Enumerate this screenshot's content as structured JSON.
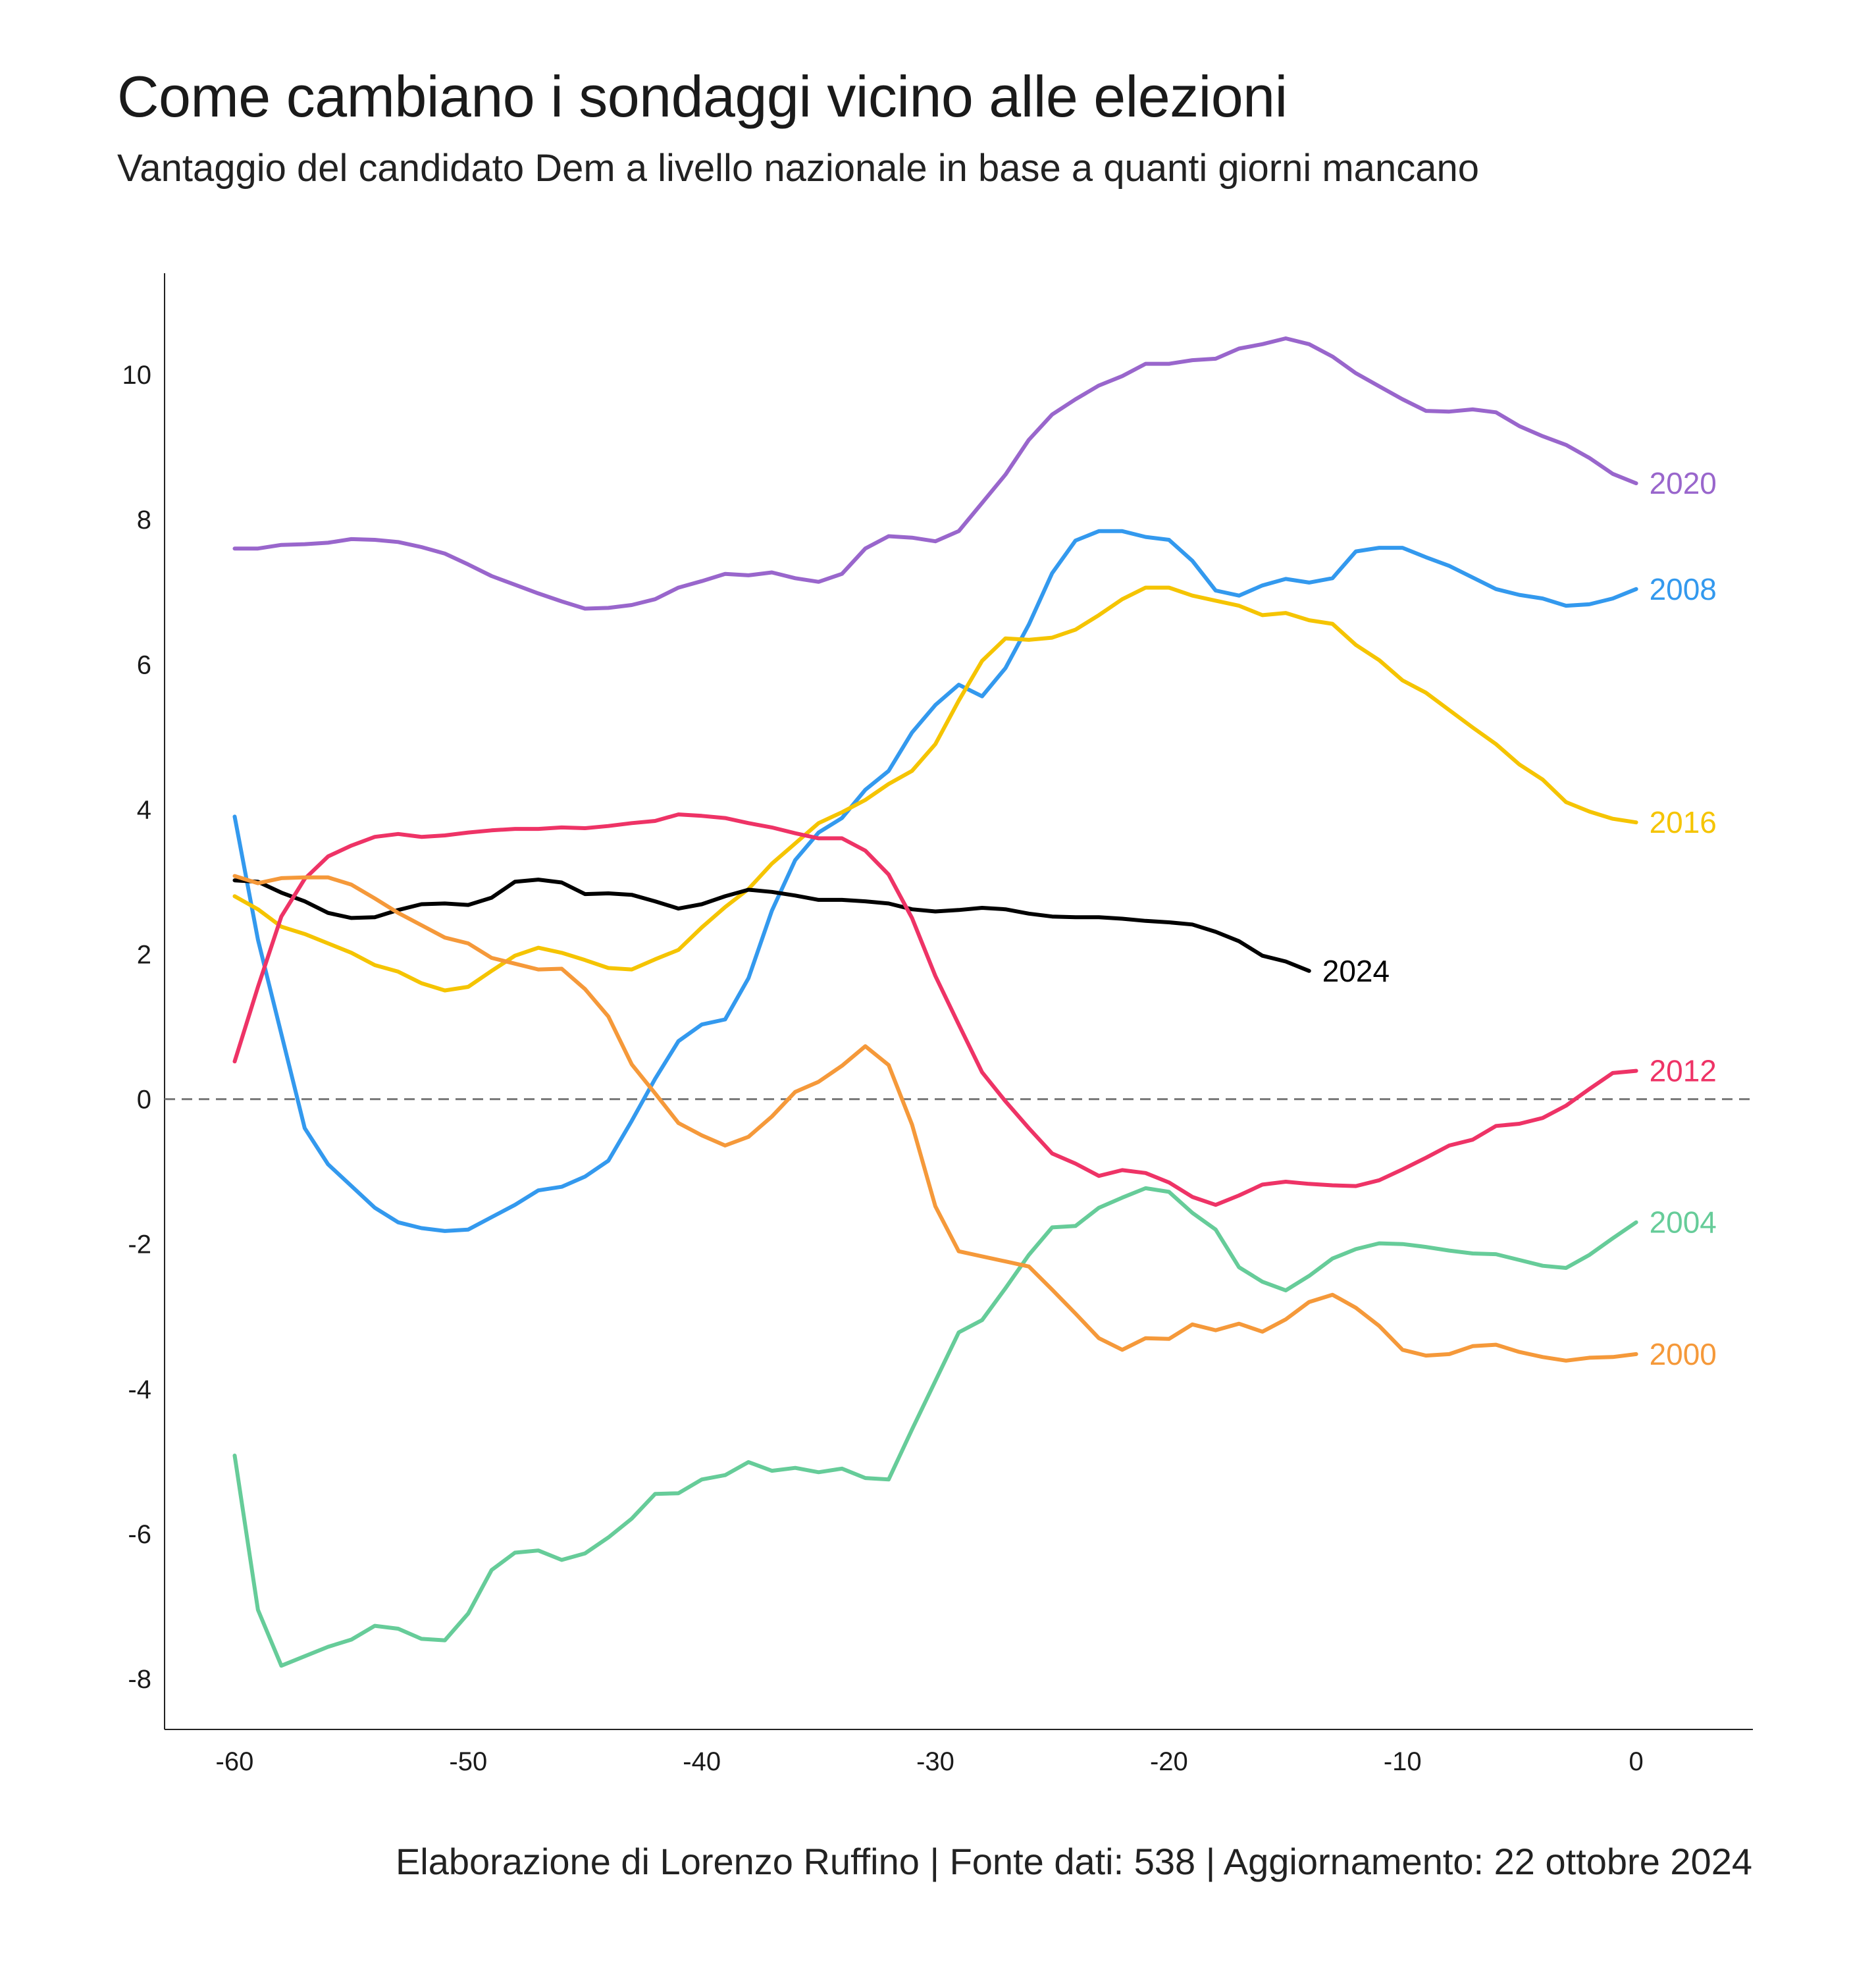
{
  "chart_data": {
    "type": "line",
    "title": "Come cambiano i sondaggi vicino alle elezioni",
    "subtitle": "Vantaggio del candidato Dem a livello nazionale in base a quanti giorni mancano",
    "caption": "Elaborazione di Lorenzo Ruffino | Fonte dati: 538 | Aggiornamento: 22 ottobre 2024",
    "xlabel": "",
    "ylabel": "",
    "xlim": [
      -63,
      5
    ],
    "ylim": [
      -8.7,
      11.4
    ],
    "x_ticks": [
      -60,
      -50,
      -40,
      -30,
      -20,
      -10,
      0
    ],
    "x_tick_labels": [
      "-60",
      "-50",
      "-40",
      "-30",
      "-20",
      "-10",
      "0"
    ],
    "y_ticks": [
      -8,
      -6,
      -4,
      -2,
      0,
      2,
      4,
      6,
      8,
      10
    ],
    "y_tick_labels": [
      "-8",
      "-6",
      "-4",
      "-2",
      "0",
      "2",
      "4",
      "6",
      "8",
      "10"
    ],
    "zero_line": "dashed",
    "grid": false,
    "legend": "inline labels at end of lines",
    "series": [
      {
        "name": "2020",
        "color": "#9966CC",
        "x": [
          -60,
          -59,
          -58,
          -57,
          -56,
          -55,
          -54,
          -53,
          -52,
          -51,
          -50,
          -49,
          -48,
          -47,
          -46,
          -45,
          -44,
          -43,
          -42,
          -41,
          -40,
          -39,
          -38,
          -37,
          -36,
          -35,
          -34,
          -33,
          -32,
          -31,
          -30,
          -29,
          -28,
          -27,
          -26,
          -25,
          -24,
          -23,
          -22,
          -21,
          -20,
          -19,
          -18,
          -17,
          -16,
          -15,
          -14,
          -13,
          -12,
          -11,
          -10,
          -9,
          -8,
          -7,
          -6,
          -5,
          -4,
          -3,
          -2,
          -1,
          0
        ],
        "y": [
          7.6,
          7.6,
          7.65,
          7.66,
          7.68,
          7.73,
          7.72,
          7.69,
          7.62,
          7.53,
          7.38,
          7.22,
          7.1,
          6.98,
          6.87,
          6.77,
          6.78,
          6.82,
          6.9,
          7.06,
          7.15,
          7.25,
          7.23,
          7.27,
          7.19,
          7.14,
          7.25,
          7.6,
          7.77,
          7.75,
          7.7,
          7.84,
          8.23,
          8.62,
          9.1,
          9.45,
          9.66,
          9.85,
          9.98,
          10.15,
          10.15,
          10.2,
          10.22,
          10.36,
          10.42,
          10.5,
          10.42,
          10.25,
          10.02,
          9.84,
          9.66,
          9.5,
          9.49,
          9.52,
          9.48,
          9.29,
          9.15,
          9.03,
          8.85,
          8.63,
          8.5
        ]
      },
      {
        "name": "2008",
        "color": "#3399EE",
        "x": [
          -60,
          -59,
          -58,
          -57,
          -56,
          -55,
          -54,
          -53,
          -52,
          -51,
          -50,
          -49,
          -48,
          -47,
          -46,
          -45,
          -44,
          -43,
          -42,
          -41,
          -40,
          -39,
          -38,
          -37,
          -36,
          -35,
          -34,
          -33,
          -32,
          -31,
          -30,
          -29,
          -28,
          -27,
          -26,
          -25,
          -24,
          -23,
          -22,
          -21,
          -20,
          -19,
          -18,
          -17,
          -16,
          -15,
          -14,
          -13,
          -12,
          -11,
          -10,
          -9,
          -8,
          -7,
          -6,
          -5,
          -4,
          -3,
          -2,
          -1,
          0
        ],
        "y": [
          3.9,
          2.2,
          0.9,
          -0.4,
          -0.9,
          -1.2,
          -1.5,
          -1.7,
          -1.78,
          -1.82,
          -1.8,
          -1.63,
          -1.46,
          -1.26,
          -1.21,
          -1.07,
          -0.85,
          -0.3,
          0.28,
          0.8,
          1.03,
          1.1,
          1.67,
          2.6,
          3.3,
          3.68,
          3.88,
          4.27,
          4.53,
          5.06,
          5.44,
          5.72,
          5.56,
          5.95,
          6.55,
          7.26,
          7.71,
          7.84,
          7.84,
          7.76,
          7.72,
          7.43,
          7.02,
          6.95,
          7.09,
          7.18,
          7.13,
          7.19,
          7.56,
          7.61,
          7.61,
          7.48,
          7.36,
          7.2,
          7.04,
          6.96,
          6.91,
          6.81,
          6.83,
          6.91,
          7.04
        ]
      },
      {
        "name": "2016",
        "color": "#F5C400",
        "x": [
          -60,
          -59,
          -58,
          -57,
          -56,
          -55,
          -54,
          -53,
          -52,
          -51,
          -50,
          -49,
          -48,
          -47,
          -46,
          -45,
          -44,
          -43,
          -42,
          -41,
          -40,
          -39,
          -38,
          -37,
          -36,
          -35,
          -34,
          -33,
          -32,
          -31,
          -30,
          -29,
          -28,
          -27,
          -26,
          -25,
          -24,
          -23,
          -22,
          -21,
          -20,
          -19,
          -18,
          -17,
          -16,
          -15,
          -14,
          -13,
          -12,
          -11,
          -10,
          -9,
          -8,
          -7,
          -6,
          -5,
          -4,
          -3,
          -2,
          -1,
          0
        ],
        "y": [
          2.8,
          2.62,
          2.38,
          2.28,
          2.15,
          2.02,
          1.85,
          1.76,
          1.6,
          1.5,
          1.55,
          1.77,
          1.98,
          2.09,
          2.02,
          1.92,
          1.81,
          1.79,
          1.93,
          2.06,
          2.37,
          2.65,
          2.9,
          3.25,
          3.53,
          3.81,
          3.96,
          4.13,
          4.35,
          4.53,
          4.9,
          5.5,
          6.05,
          6.36,
          6.34,
          6.37,
          6.48,
          6.68,
          6.9,
          7.06,
          7.06,
          6.95,
          6.88,
          6.81,
          6.68,
          6.71,
          6.61,
          6.56,
          6.27,
          6.06,
          5.78,
          5.61,
          5.37,
          5.13,
          4.9,
          4.62,
          4.41,
          4.1,
          3.97,
          3.87,
          3.82
        ]
      },
      {
        "name": "2024",
        "color": "#000000",
        "x": [
          -60,
          -59,
          -58,
          -57,
          -56,
          -55,
          -54,
          -53,
          -52,
          -51,
          -50,
          -49,
          -48,
          -47,
          -46,
          -45,
          -44,
          -43,
          -42,
          -41,
          -40,
          -39,
          -38,
          -37,
          -36,
          -35,
          -34,
          -33,
          -32,
          -31,
          -30,
          -29,
          -28,
          -27,
          -26,
          -25,
          -24,
          -23,
          -22,
          -21,
          -20,
          -19,
          -18,
          -17,
          -16,
          -15,
          -14
        ],
        "y": [
          3.02,
          3.0,
          2.85,
          2.73,
          2.57,
          2.5,
          2.51,
          2.61,
          2.69,
          2.7,
          2.68,
          2.78,
          3.0,
          3.03,
          2.99,
          2.83,
          2.84,
          2.82,
          2.73,
          2.63,
          2.69,
          2.8,
          2.89,
          2.86,
          2.81,
          2.75,
          2.75,
          2.73,
          2.7,
          2.62,
          2.59,
          2.61,
          2.64,
          2.62,
          2.56,
          2.52,
          2.51,
          2.51,
          2.49,
          2.46,
          2.44,
          2.41,
          2.31,
          2.18,
          1.98,
          1.9,
          1.77
        ]
      },
      {
        "name": "2012",
        "color": "#EE3366",
        "x": [
          -60,
          -59,
          -58,
          -57,
          -56,
          -55,
          -54,
          -53,
          -52,
          -51,
          -50,
          -49,
          -48,
          -47,
          -46,
          -45,
          -44,
          -43,
          -42,
          -41,
          -40,
          -39,
          -38,
          -37,
          -36,
          -35,
          -34,
          -33,
          -32,
          -31,
          -30,
          -29,
          -28,
          -27,
          -26,
          -25,
          -24,
          -23,
          -22,
          -21,
          -20,
          -19,
          -18,
          -17,
          -16,
          -15,
          -14,
          -13,
          -12,
          -11,
          -10,
          -9,
          -8,
          -7,
          -6,
          -5,
          -4,
          -3,
          -2,
          -1,
          0
        ],
        "y": [
          0.52,
          1.55,
          2.52,
          3.04,
          3.35,
          3.5,
          3.62,
          3.66,
          3.62,
          3.64,
          3.68,
          3.71,
          3.73,
          3.73,
          3.75,
          3.74,
          3.77,
          3.81,
          3.84,
          3.93,
          3.91,
          3.88,
          3.81,
          3.75,
          3.67,
          3.6,
          3.6,
          3.43,
          3.1,
          2.5,
          1.7,
          1.03,
          0.37,
          -0.03,
          -0.4,
          -0.75,
          -0.89,
          -1.06,
          -0.98,
          -1.02,
          -1.15,
          -1.35,
          -1.46,
          -1.33,
          -1.18,
          -1.14,
          -1.17,
          -1.19,
          -1.2,
          -1.12,
          -0.97,
          -0.81,
          -0.64,
          -0.56,
          -0.37,
          -0.34,
          -0.26,
          -0.09,
          0.14,
          0.36,
          0.39
        ]
      },
      {
        "name": "2004",
        "color": "#66CC99",
        "x": [
          -60,
          -59,
          -58,
          -57,
          -56,
          -55,
          -54,
          -53,
          -52,
          -51,
          -50,
          -49,
          -48,
          -47,
          -46,
          -45,
          -44,
          -43,
          -42,
          -41,
          -40,
          -39,
          -38,
          -37,
          -36,
          -35,
          -34,
          -33,
          -32,
          -31,
          -30,
          -29,
          -28,
          -27,
          -26,
          -25,
          -24,
          -23,
          -22,
          -21,
          -20,
          -19,
          -18,
          -17,
          -16,
          -15,
          -14,
          -13,
          -12,
          -11,
          -10,
          -9,
          -8,
          -7,
          -6,
          -5,
          -4,
          -3,
          -2,
          -1,
          0
        ],
        "y": [
          -4.92,
          -7.05,
          -7.82,
          -7.69,
          -7.56,
          -7.46,
          -7.27,
          -7.31,
          -7.45,
          -7.47,
          -7.1,
          -6.5,
          -6.26,
          -6.23,
          -6.36,
          -6.27,
          -6.05,
          -5.79,
          -5.45,
          -5.44,
          -5.25,
          -5.19,
          -5.01,
          -5.13,
          -5.09,
          -5.15,
          -5.1,
          -5.23,
          -5.25,
          -4.56,
          -3.89,
          -3.22,
          -3.05,
          -2.61,
          -2.15,
          -1.77,
          -1.75,
          -1.5,
          -1.36,
          -1.23,
          -1.28,
          -1.57,
          -1.8,
          -2.32,
          -2.52,
          -2.64,
          -2.44,
          -2.2,
          -2.07,
          -1.99,
          -2.0,
          -2.04,
          -2.09,
          -2.13,
          -2.14,
          -2.22,
          -2.3,
          -2.33,
          -2.15,
          -1.92,
          -1.7
        ]
      },
      {
        "name": "2000",
        "color": "#F5993A",
        "x": [
          -60,
          -59,
          -58,
          -57,
          -56,
          -55,
          -54,
          -53,
          -52,
          -51,
          -50,
          -49,
          -48,
          -47,
          -46,
          -45,
          -44,
          -43,
          -42,
          -41,
          -40,
          -39,
          -38,
          -37,
          -36,
          -35,
          -34,
          -33,
          -32,
          -31,
          -30,
          -29,
          -28,
          -27,
          -26,
          -25,
          -24,
          -23,
          -22,
          -21,
          -20,
          -19,
          -18,
          -17,
          -16,
          -15,
          -14,
          -13,
          -12,
          -11,
          -10,
          -9,
          -8,
          -7,
          -6,
          -5,
          -4,
          -3,
          -2,
          -1,
          0
        ],
        "y": [
          3.08,
          2.98,
          3.05,
          3.06,
          3.06,
          2.96,
          2.77,
          2.57,
          2.4,
          2.23,
          2.15,
          1.95,
          1.87,
          1.79,
          1.8,
          1.52,
          1.14,
          0.48,
          0.08,
          -0.33,
          -0.5,
          -0.64,
          -0.52,
          -0.24,
          0.1,
          0.24,
          0.46,
          0.73,
          0.47,
          -0.35,
          -1.48,
          -2.1,
          -2.17,
          -2.24,
          -2.31,
          -2.63,
          -2.96,
          -3.3,
          -3.46,
          -3.3,
          -3.31,
          -3.11,
          -3.19,
          -3.1,
          -3.21,
          -3.04,
          -2.8,
          -2.7,
          -2.88,
          -3.13,
          -3.46,
          -3.54,
          -3.52,
          -3.41,
          -3.39,
          -3.49,
          -3.56,
          -3.61,
          -3.57,
          -3.56,
          -3.52
        ]
      }
    ]
  }
}
